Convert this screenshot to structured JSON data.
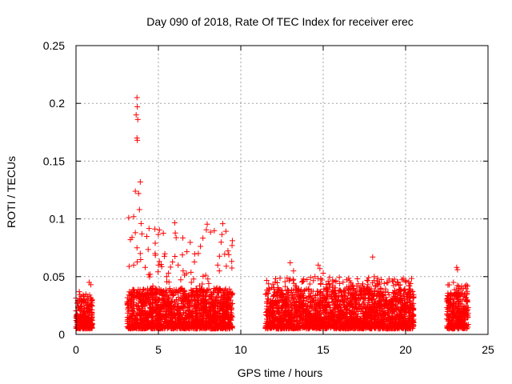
{
  "chart_data": {
    "type": "scatter",
    "title": "Day 090 of 2018, Rate Of TEC Index for receiver erec",
    "xlabel": "GPS time / hours",
    "ylabel": "ROTI / TECUs",
    "xlim": [
      0,
      25
    ],
    "ylim": [
      0,
      0.25
    ],
    "x_ticks": [
      "0",
      "5",
      "10",
      "15",
      "20",
      "25"
    ],
    "y_ticks": [
      "0",
      "0.05",
      "0.1",
      "0.15",
      "0.2",
      "0.25"
    ],
    "grid": true,
    "marker": "+",
    "marker_color": "#ff0000",
    "data_segments": [
      {
        "x_range": [
          0.0,
          1.0
        ],
        "typical_range": [
          0.005,
          0.03
        ],
        "peak": 0.045
      },
      {
        "x_range": [
          3.1,
          9.5
        ],
        "typical_range": [
          0.005,
          0.04
        ],
        "peak": 0.205
      },
      {
        "x_range": [
          11.5,
          20.5
        ],
        "typical_range": [
          0.005,
          0.04
        ],
        "peak": 0.067
      },
      {
        "x_range": [
          22.5,
          23.8
        ],
        "typical_range": [
          0.005,
          0.035
        ],
        "peak": 0.058
      }
    ],
    "highlight_points": [
      [
        0.2,
        0.037
      ],
      [
        0.8,
        0.045
      ],
      [
        0.9,
        0.043
      ],
      [
        3.2,
        0.101
      ],
      [
        3.3,
        0.082
      ],
      [
        3.4,
        0.084
      ],
      [
        3.5,
        0.102
      ],
      [
        3.6,
        0.124
      ],
      [
        3.65,
        0.19
      ],
      [
        3.7,
        0.205
      ],
      [
        3.72,
        0.197
      ],
      [
        3.75,
        0.186
      ],
      [
        3.7,
        0.17
      ],
      [
        3.72,
        0.168
      ],
      [
        3.8,
        0.122
      ],
      [
        3.85,
        0.108
      ],
      [
        3.9,
        0.132
      ],
      [
        3.95,
        0.096
      ],
      [
        4.0,
        0.087
      ],
      [
        3.6,
        0.088
      ],
      [
        3.7,
        0.075
      ],
      [
        3.9,
        0.07
      ],
      [
        3.5,
        0.06
      ],
      [
        4.2,
        0.058
      ],
      [
        4.5,
        0.052
      ],
      [
        4.8,
        0.07
      ],
      [
        5.0,
        0.06
      ],
      [
        5.5,
        0.05
      ],
      [
        6.2,
        0.06
      ],
      [
        6.5,
        0.055
      ],
      [
        7.0,
        0.045
      ],
      [
        7.5,
        0.042
      ],
      [
        8.0,
        0.048
      ],
      [
        8.6,
        0.06
      ],
      [
        8.7,
        0.055
      ],
      [
        9.2,
        0.032
      ],
      [
        11.7,
        0.04
      ],
      [
        12.3,
        0.038
      ],
      [
        13.0,
        0.062
      ],
      [
        13.2,
        0.055
      ],
      [
        13.8,
        0.048
      ],
      [
        14.5,
        0.05
      ],
      [
        14.7,
        0.06
      ],
      [
        14.8,
        0.057
      ],
      [
        15.0,
        0.053
      ],
      [
        15.3,
        0.046
      ],
      [
        16.0,
        0.044
      ],
      [
        16.8,
        0.042
      ],
      [
        17.5,
        0.04
      ],
      [
        18.0,
        0.067
      ],
      [
        18.1,
        0.05
      ],
      [
        19.0,
        0.048
      ],
      [
        19.5,
        0.045
      ],
      [
        20.0,
        0.046
      ],
      [
        20.3,
        0.044
      ],
      [
        22.6,
        0.033
      ],
      [
        22.9,
        0.045
      ],
      [
        23.1,
        0.058
      ],
      [
        23.15,
        0.056
      ],
      [
        23.5,
        0.04
      ]
    ]
  }
}
